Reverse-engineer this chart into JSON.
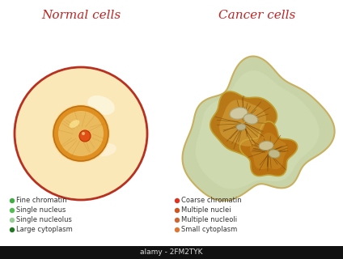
{
  "title_normal": "Normal cells",
  "title_cancer": "Cancer cells",
  "title_color": "#c42222",
  "title_fontsize": 11,
  "bg_color": "#ffffff",
  "legend_normal": [
    {
      "label": "Fine chromatin",
      "color": "#44aa44"
    },
    {
      "label": "Single nucleus",
      "color": "#55bb55"
    },
    {
      "label": "Single nucleolus",
      "color": "#99cc99"
    },
    {
      "label": "Large cytoplasm",
      "color": "#227722"
    }
  ],
  "legend_cancer": [
    {
      "label": "Coarse chromatin",
      "color": "#dd3322"
    },
    {
      "label": "Multiple nuclei",
      "color": "#cc5522"
    },
    {
      "label": "Multiple nucleoli",
      "color": "#cc6633"
    },
    {
      "label": "Small cytoplasm",
      "color": "#dd7733"
    }
  ],
  "normal_cell": {
    "outer_color": "#fae8b8",
    "outer_edge": "#b83020",
    "outer_highlight": "#fff8e0",
    "nucleus_color_inner": "#f0c060",
    "nucleus_color_outer": "#e09020",
    "nucleus_edge": "#c07010",
    "nucleus_highlight": "#fce8b0",
    "nucleolus_color": "#e05015",
    "nucleolus_edge": "#c03000"
  },
  "cancer_cell": {
    "outer_color": "#c8d4a8",
    "outer_color2": "#b8c898",
    "outer_edge": "#c8b060",
    "nucleus_fill": "#c89040",
    "nucleus_edge": "#c0a030",
    "nucleus_dark": "#8a5010",
    "nucleolus_fill": "#d0c090",
    "chromatin_color": "#7a4808"
  }
}
